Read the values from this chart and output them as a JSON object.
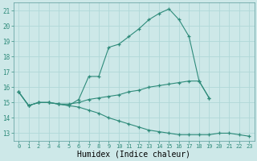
{
  "title": "",
  "xlabel": "Humidex (Indice chaleur)",
  "x": [
    0,
    1,
    2,
    3,
    4,
    5,
    6,
    7,
    8,
    9,
    10,
    11,
    12,
    13,
    14,
    15,
    16,
    17,
    18,
    19,
    20,
    21,
    22,
    23
  ],
  "line1": [
    15.7,
    14.8,
    15.0,
    15.0,
    14.9,
    14.8,
    15.2,
    16.7,
    16.7,
    18.6,
    18.8,
    19.3,
    19.8,
    20.4,
    20.8,
    21.1,
    20.4,
    19.3,
    16.4,
    15.3,
    null,
    null,
    null,
    null
  ],
  "line2": [
    15.7,
    14.8,
    15.0,
    15.0,
    14.9,
    14.9,
    15.0,
    15.2,
    15.3,
    15.4,
    15.5,
    15.7,
    15.8,
    16.0,
    16.1,
    16.2,
    16.3,
    16.4,
    16.4,
    15.3,
    null,
    null,
    null,
    null
  ],
  "line3": [
    15.7,
    14.8,
    15.0,
    15.0,
    14.9,
    14.8,
    14.7,
    14.5,
    14.3,
    14.0,
    13.8,
    13.6,
    13.4,
    13.2,
    13.1,
    13.0,
    12.9,
    12.9,
    12.9,
    12.9,
    13.0,
    13.0,
    12.9,
    12.8
  ],
  "line_color": "#2e8b7a",
  "bg_color": "#cde8e8",
  "grid_color": "#b0d8d8",
  "ylim": [
    12.5,
    21.5
  ],
  "xlim": [
    -0.5,
    23.5
  ],
  "yticks": [
    13,
    14,
    15,
    16,
    17,
    18,
    19,
    20,
    21
  ],
  "xticks": [
    0,
    1,
    2,
    3,
    4,
    5,
    6,
    7,
    8,
    9,
    10,
    11,
    12,
    13,
    14,
    15,
    16,
    17,
    18,
    19,
    20,
    21,
    22,
    23
  ],
  "xtick_fontsize": 5.0,
  "ytick_fontsize": 5.5,
  "xlabel_fontsize": 7.0
}
